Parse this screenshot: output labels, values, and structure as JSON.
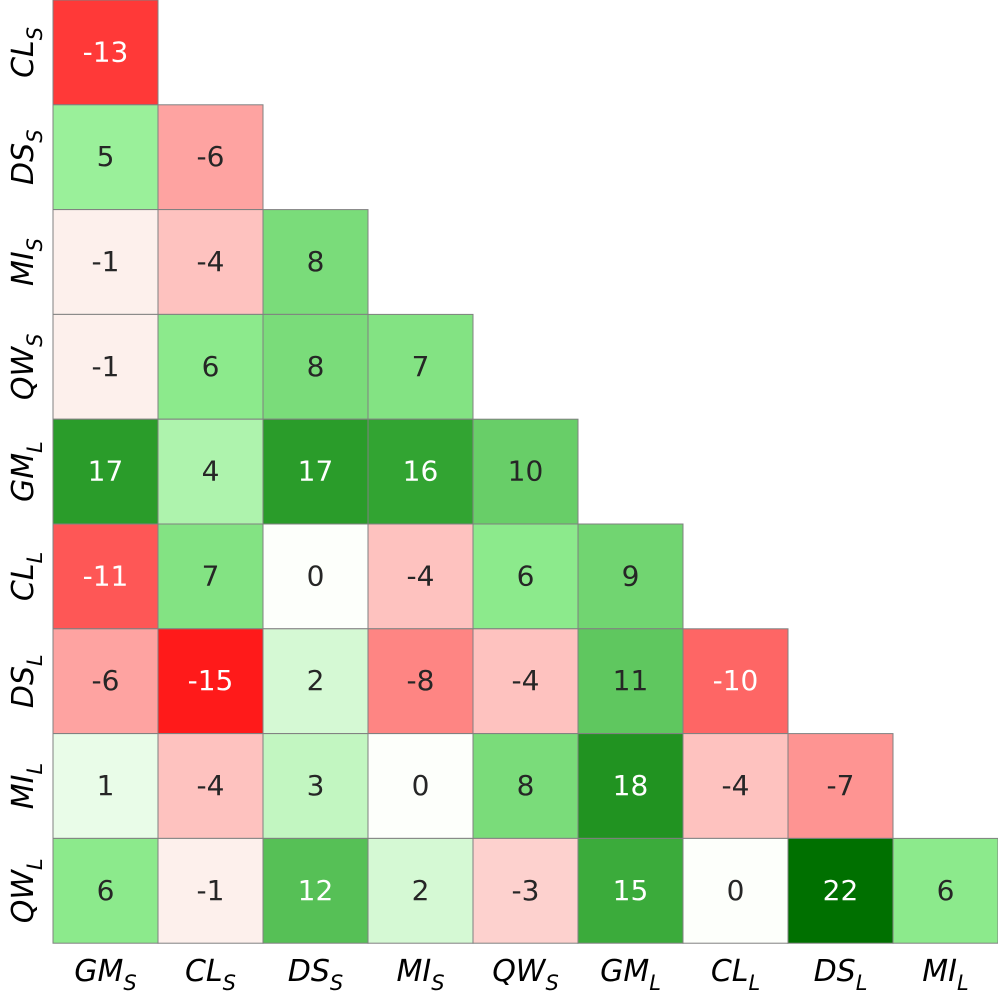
{
  "chart_data": {
    "type": "heatmap",
    "x_labels": [
      {
        "text": "GM",
        "sub": "S"
      },
      {
        "text": "CL",
        "sub": "S"
      },
      {
        "text": "DS",
        "sub": "S"
      },
      {
        "text": "MI",
        "sub": "S"
      },
      {
        "text": "QW",
        "sub": "S"
      },
      {
        "text": "GM",
        "sub": "L"
      },
      {
        "text": "CL",
        "sub": "L"
      },
      {
        "text": "DS",
        "sub": "L"
      },
      {
        "text": "MI",
        "sub": "L"
      }
    ],
    "y_labels": [
      {
        "text": "CL",
        "sub": "S"
      },
      {
        "text": "DS",
        "sub": "S"
      },
      {
        "text": "MI",
        "sub": "S"
      },
      {
        "text": "QW",
        "sub": "S"
      },
      {
        "text": "GM",
        "sub": "L"
      },
      {
        "text": "CL",
        "sub": "L"
      },
      {
        "text": "DS",
        "sub": "L"
      },
      {
        "text": "MI",
        "sub": "L"
      },
      {
        "text": "QW",
        "sub": "L"
      }
    ],
    "values": [
      [
        -13
      ],
      [
        5,
        -6
      ],
      [
        -1,
        -4,
        8
      ],
      [
        -1,
        6,
        8,
        7
      ],
      [
        17,
        4,
        17,
        16,
        10
      ],
      [
        -11,
        7,
        0,
        -4,
        6,
        9
      ],
      [
        -6,
        -15,
        2,
        -8,
        -4,
        11,
        -10
      ],
      [
        1,
        -4,
        3,
        0,
        8,
        18,
        -4,
        -7
      ],
      [
        6,
        -1,
        12,
        2,
        -3,
        15,
        0,
        22,
        6
      ]
    ],
    "negative_color": "#ff1a1a",
    "zero_color": "#fdfffb",
    "positive_colors": [
      "#90ee90",
      "#2ea02e",
      "#007000"
    ],
    "cell_border": "#808080"
  }
}
